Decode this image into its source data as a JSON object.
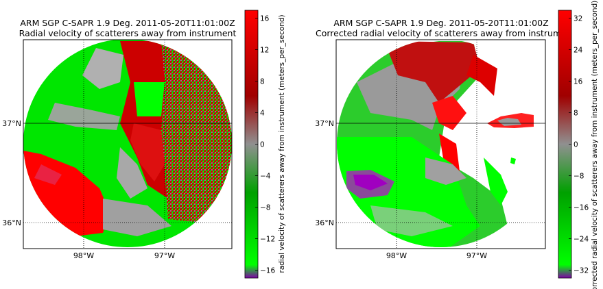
{
  "chart_data": [
    {
      "type": "heatmap",
      "title": "ARM SGP C-SAPR 1.9 Deg. 2011-05-20T11:01:00Z",
      "subtitle": "Radial velocity of scatterers away from instrument",
      "x_ticks": [
        "98°W",
        "97°W"
      ],
      "y_ticks": [
        "37°N",
        "36°N"
      ],
      "colorbar_label": "radial velocity of scatterers away from instrument (meters_per_second)",
      "colorbar_range": [
        -17,
        17
      ],
      "colorbar_ticks": [
        16,
        12,
        8,
        4,
        0,
        -4,
        -8,
        -12,
        -16
      ],
      "colorbar_tick_labels": [
        "16",
        "12",
        "8",
        "4",
        "0",
        "−4",
        "−8",
        "−12",
        "−16"
      ],
      "colormap": [
        "#7f00a8",
        "#00ff00",
        "#00a000",
        "#909090",
        "#a00000",
        "#ff0000"
      ]
    },
    {
      "type": "heatmap",
      "title": "ARM SGP C-SAPR 1.9 Deg. 2011-05-20T11:01:00Z",
      "subtitle": "Corrected radial velocity of scatterers away from instrument",
      "x_ticks": [
        "98°W",
        "97°W"
      ],
      "y_ticks": [
        "37°N",
        "36°N"
      ],
      "colorbar_label": "corrected radial velocity of scatterers away from instrument (meters_per_second)",
      "colorbar_range": [
        -34,
        34
      ],
      "colorbar_ticks": [
        32,
        24,
        16,
        8,
        0,
        -8,
        -16,
        -24,
        -32
      ],
      "colorbar_tick_labels": [
        "32",
        "24",
        "16",
        "8",
        "0",
        "−8",
        "−16",
        "−24",
        "−32"
      ],
      "colormap": [
        "#7f00a8",
        "#00ff00",
        "#00a000",
        "#909090",
        "#a00000",
        "#ff0000"
      ]
    }
  ]
}
